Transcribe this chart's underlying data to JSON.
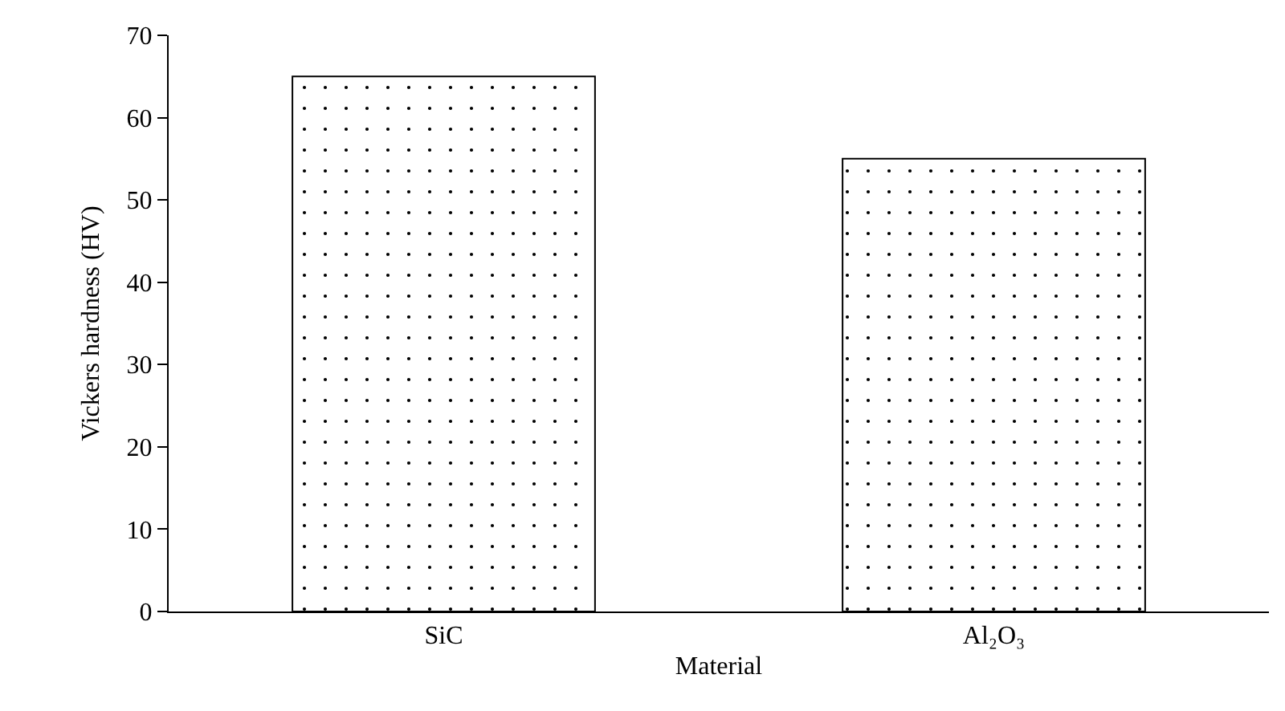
{
  "chart_data": {
    "type": "bar",
    "xlabel": "Material",
    "ylabel": "Vickers hardness (HV)",
    "categories": [
      "SiC",
      "Al₂O₃"
    ],
    "values": [
      65,
      55
    ],
    "color": "#000000",
    "ylim": [
      0,
      70
    ],
    "yticks": [
      0,
      10,
      20,
      30,
      40,
      50,
      60,
      70
    ]
  }
}
